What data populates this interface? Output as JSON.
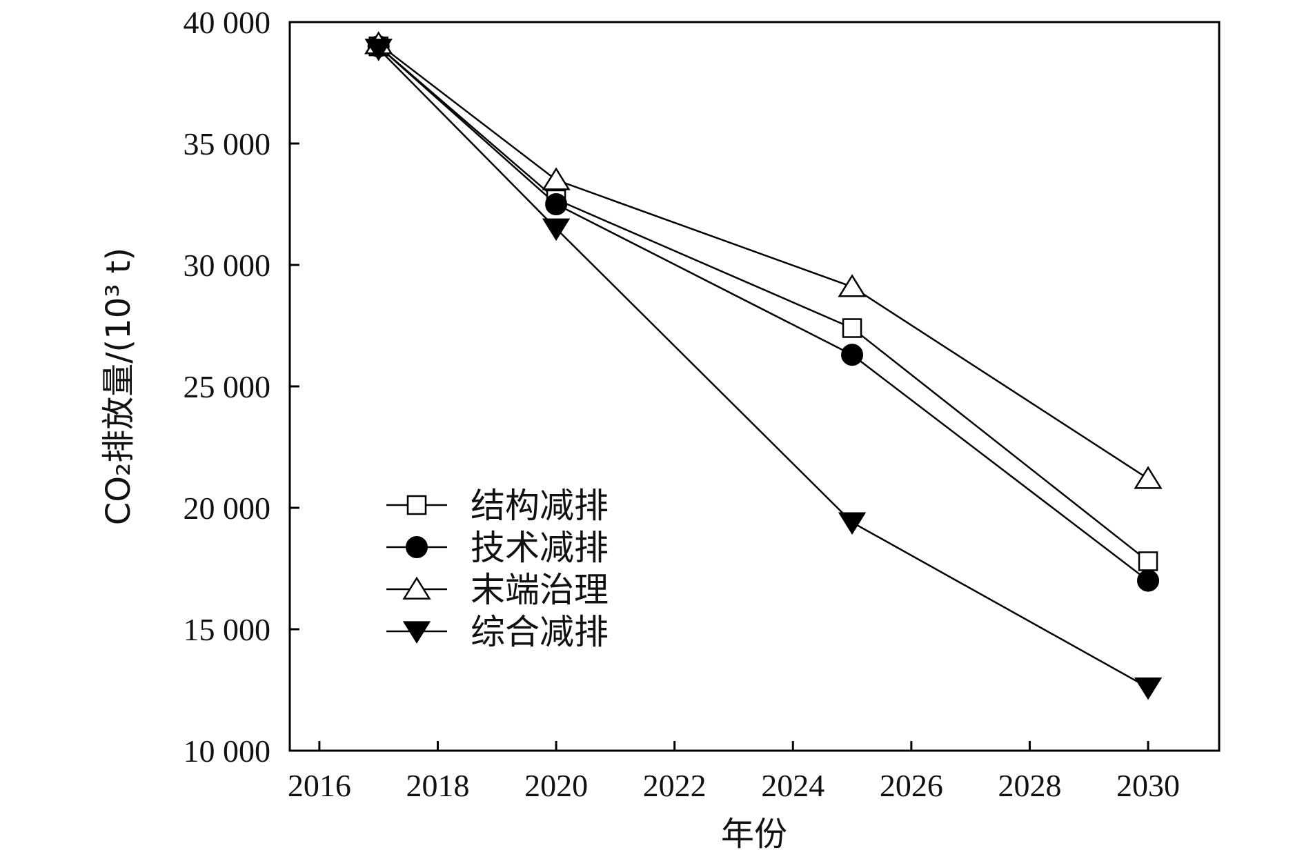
{
  "chart_data": {
    "type": "line",
    "xlabel": "年份",
    "ylabel": "CO₂排放量/(10³ t)",
    "xlim": [
      2015.5,
      2031.2
    ],
    "ylim": [
      10000,
      40000
    ],
    "x_ticks": [
      2016,
      2018,
      2020,
      2022,
      2024,
      2026,
      2028,
      2030
    ],
    "y_ticks": [
      10000,
      15000,
      20000,
      25000,
      30000,
      35000,
      40000
    ],
    "y_tick_labels": [
      "10 000",
      "15 000",
      "20 000",
      "25 000",
      "30 000",
      "35 000",
      "40 000"
    ],
    "x": [
      2017,
      2020,
      2025,
      2030
    ],
    "series": [
      {
        "name": "结构减排",
        "marker": "open-square",
        "values": [
          39000,
          32700,
          27400,
          17800
        ]
      },
      {
        "name": "技术减排",
        "marker": "filled-circle",
        "values": [
          39000,
          32500,
          26300,
          17000
        ]
      },
      {
        "name": "末端治理",
        "marker": "open-triangle-up",
        "values": [
          39100,
          33500,
          29100,
          21200
        ]
      },
      {
        "name": "综合减排",
        "marker": "filled-triangle-down",
        "values": [
          38900,
          31500,
          19400,
          12600
        ]
      }
    ],
    "legend_position": "lower-left",
    "grid": false,
    "colors": {
      "line": "#000000",
      "marker_fill_open": "#ffffff",
      "marker_fill_filled": "#000000"
    }
  }
}
